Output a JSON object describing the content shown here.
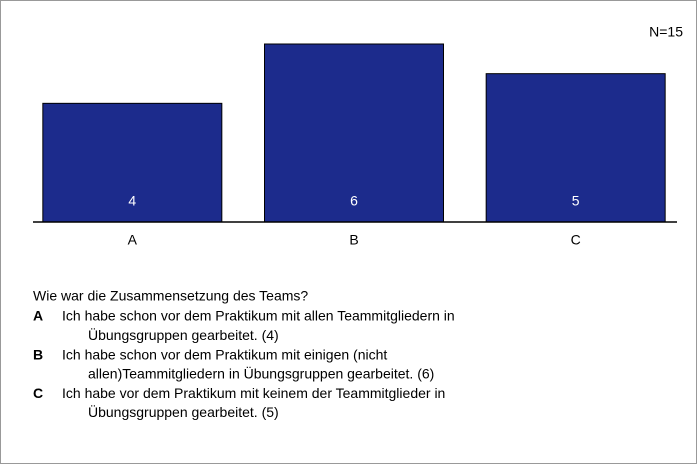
{
  "chart_data": {
    "type": "bar",
    "categories": [
      "A",
      "B",
      "C"
    ],
    "values": [
      4,
      6,
      5
    ],
    "color": "#1c2b8c",
    "annotation": "N=15"
  },
  "legend": {
    "question": "Wie war die Zusammensetzung des Teams?",
    "items": [
      {
        "letter": "A",
        "lines": [
          "Ich habe schon vor dem Praktikum mit allen Teammitgliedern in",
          "Übungsgruppen gearbeitet. (4)"
        ]
      },
      {
        "letter": "B",
        "lines": [
          "Ich habe schon vor dem Praktikum mit einigen (nicht",
          "allen)Teammitgliedern in Übungsgruppen gearbeitet. (6)"
        ]
      },
      {
        "letter": "C",
        "lines": [
          "Ich habe vor dem Praktikum mit keinem der Teammitglieder in",
          "Übungsgruppen gearbeitet. (5)"
        ]
      }
    ]
  }
}
